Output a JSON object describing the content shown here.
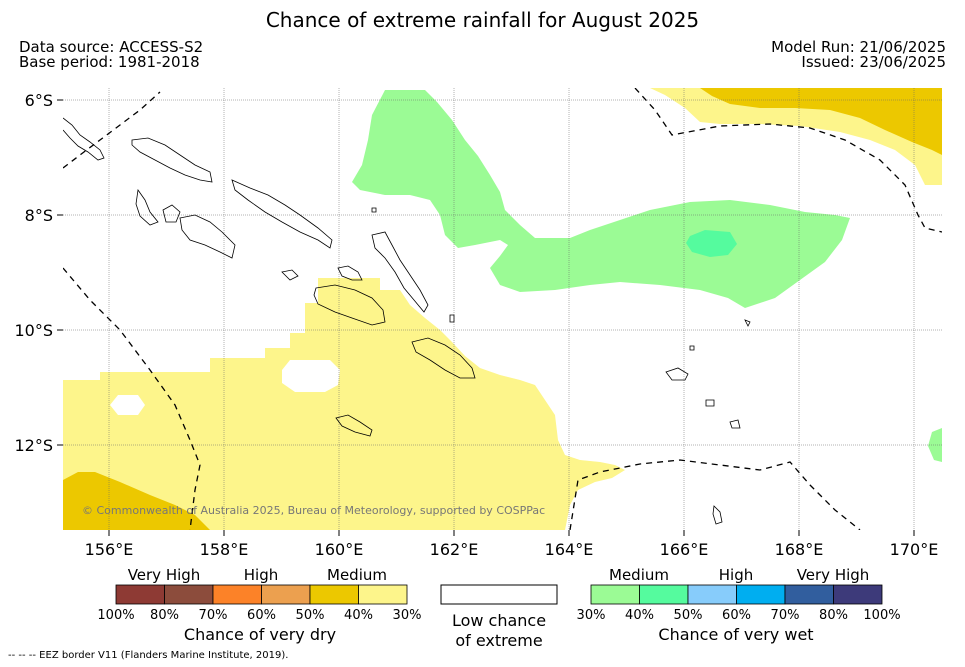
{
  "title": "Chance of extreme rainfall for August 2025",
  "header": {
    "data_source": "Data source: ACCESS-S2",
    "base_period": "Base period: 1981-2018",
    "model_run": "Model Run: 21/06/2025",
    "issued": "Issued: 23/06/2025"
  },
  "map": {
    "y_ticks": [
      "6°S",
      "8°S",
      "10°S",
      "12°S"
    ],
    "x_ticks": [
      "156°E",
      "158°E",
      "160°E",
      "162°E",
      "164°E",
      "166°E",
      "168°E",
      "170°E"
    ],
    "copyright": "© Commonwealth of Australia 2025, Bureau of Meteorology, supported by COSPPac",
    "colors": {
      "dry_light": "#fdf58b",
      "dry_medium": "#ecc800",
      "wet_medium": "#9bfb95",
      "wet_high": "#55fb9e"
    }
  },
  "legend_dry": {
    "levels": [
      "Very High",
      "High",
      "Medium"
    ],
    "percents": [
      "100%",
      "80%",
      "70%",
      "60%",
      "50%",
      "40%",
      "30%"
    ],
    "caption": "Chance of very dry",
    "colors": [
      "#8e3a34",
      "#8c4c3c",
      "#fc8228",
      "#eca04f",
      "#ecc800",
      "#fdf58b"
    ]
  },
  "legend_low": {
    "line1": "Low chance",
    "line2": "of extreme"
  },
  "legend_wet": {
    "levels": [
      "Medium",
      "High",
      "Very High"
    ],
    "percents": [
      "30%",
      "40%",
      "50%",
      "60%",
      "70%",
      "80%",
      "100%"
    ],
    "caption": "Chance of very wet",
    "colors": [
      "#9bfb95",
      "#55fb9e",
      "#87ccfb",
      "#00aef0",
      "#315e9e",
      "#3d3a7a"
    ]
  },
  "footer": "--  --  -- EEZ border V11 (Flanders Marine Institute, 2019)."
}
